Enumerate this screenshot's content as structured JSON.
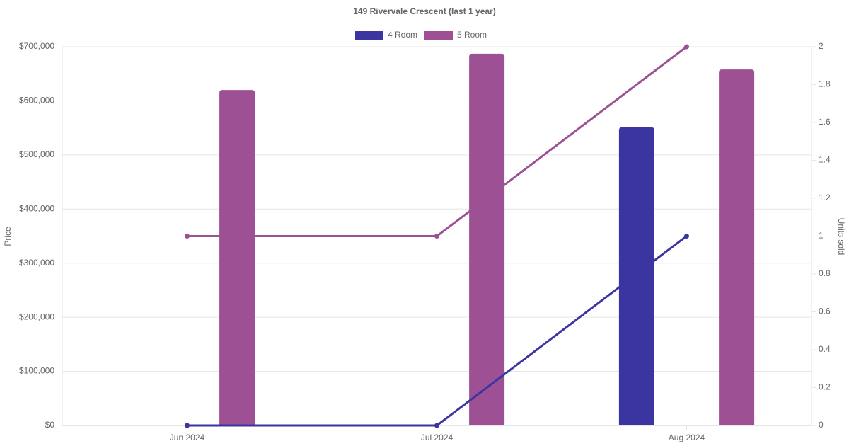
{
  "chart_data": {
    "type": "bar",
    "title": "149 Rivervale Crescent (last 1 year)",
    "y_label": "Price",
    "y2_label": "Units sold",
    "categories": [
      "Jun 2024",
      "Jul 2024",
      "Aug 2024"
    ],
    "series": [
      {
        "name": "4 Room",
        "color": "#3a35a0",
        "values": [
          null,
          null,
          551000
        ],
        "y2_type": "line",
        "y2_values": [
          0,
          0,
          1
        ]
      },
      {
        "name": "5 Room",
        "color": "#9d5093",
        "values": [
          620000,
          687000,
          658000
        ],
        "y2_type": "line",
        "y2_values": [
          1,
          1,
          2
        ]
      }
    ],
    "ylim": [
      0,
      700000
    ],
    "yticks": [
      {
        "value": 0,
        "label": "$0"
      },
      {
        "value": 100000,
        "label": "$100,000"
      },
      {
        "value": 200000,
        "label": "$200,000"
      },
      {
        "value": 300000,
        "label": "$300,000"
      },
      {
        "value": 400000,
        "label": "$400,000"
      },
      {
        "value": 500000,
        "label": "$500,000"
      },
      {
        "value": 600000,
        "label": "$600,000"
      },
      {
        "value": 700000,
        "label": "$700,000"
      }
    ],
    "y2lim": [
      0,
      2
    ],
    "y2ticks": [
      0,
      0.2,
      0.4,
      0.6,
      0.8,
      1,
      1.2,
      1.4,
      1.6,
      1.8,
      2
    ],
    "grid": true,
    "legend": "top"
  }
}
